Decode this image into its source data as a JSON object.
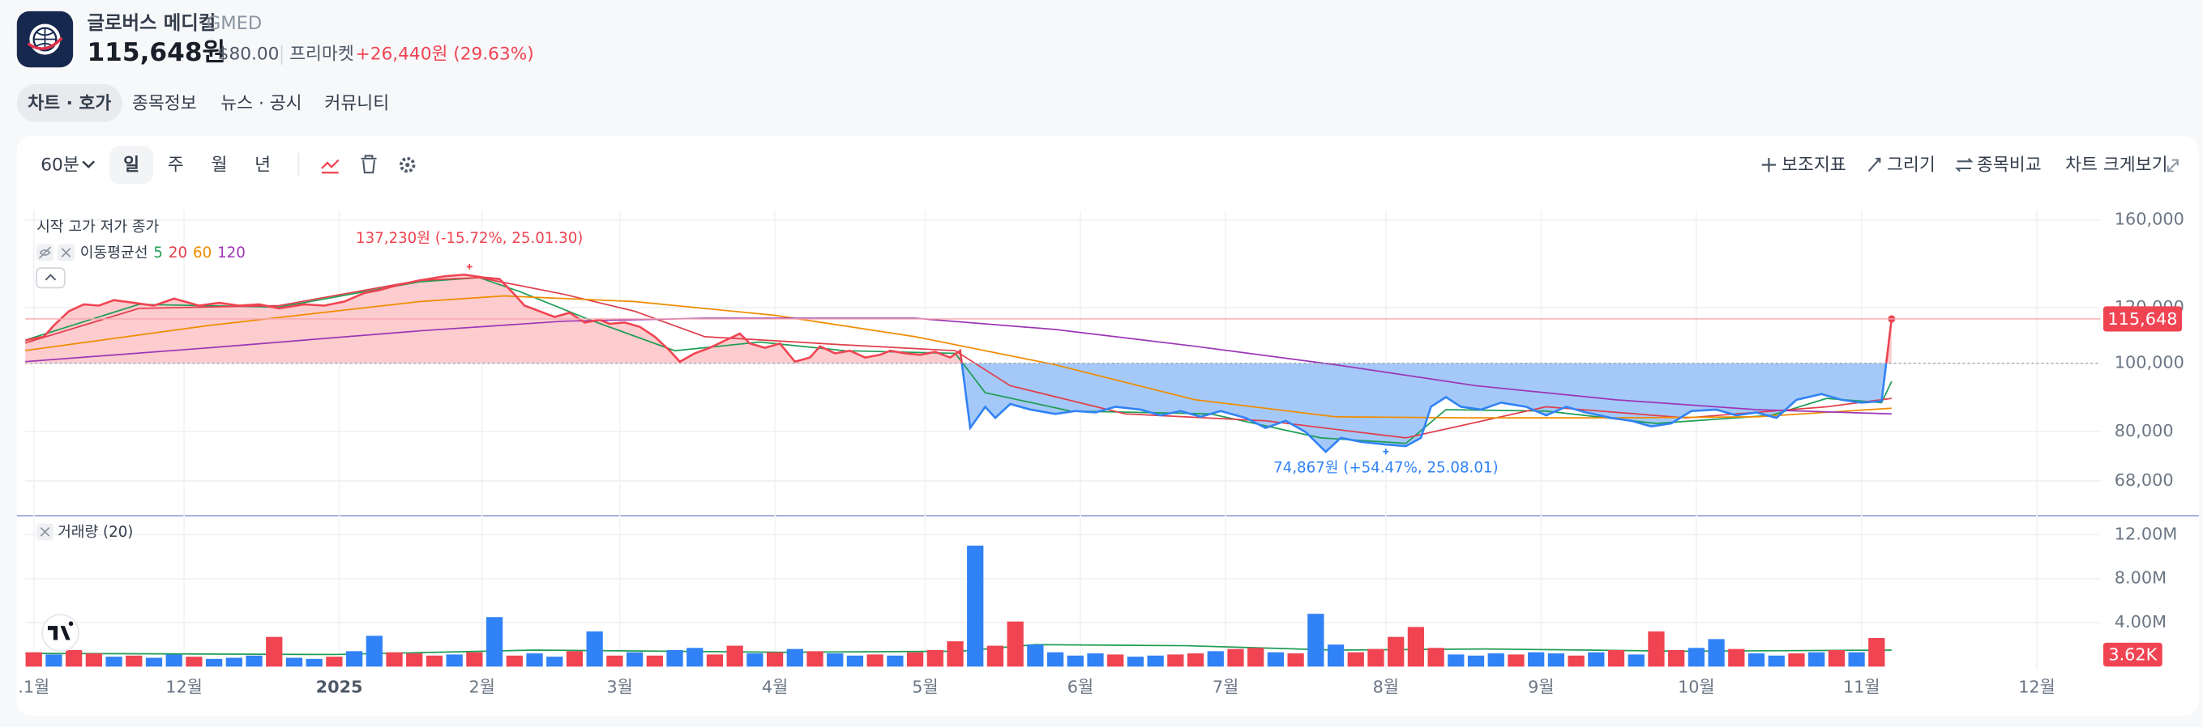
{
  "header": {
    "name": "글로버스 메디컬",
    "ticker": "GMED",
    "price": "115,648원",
    "usd_price": "$80.00",
    "session": "프리마켓",
    "change": "+26,440원 (29.63%)"
  },
  "tabs": [
    "차트 · 호가",
    "종목정보",
    "뉴스 · 공시",
    "커뮤니티"
  ],
  "toolbar": {
    "interval": "60분",
    "periods": [
      "일",
      "주",
      "월",
      "년"
    ],
    "actions": [
      "보조지표",
      "그리기",
      "종목비교",
      "차트 크게보기"
    ]
  },
  "chart_data": [
    {
      "type": "line",
      "log": true,
      "grid": true,
      "ohlc_label": "시작 고가 저가 종가",
      "ma_label": "이동평균선",
      "xlim": [
        -1.7,
        412.7
      ],
      "ylim": [
        60800,
        165000
      ],
      "yticks": [
        {
          "value": 68000,
          "label": "68,000"
        },
        {
          "value": 80000,
          "label": "80,000"
        },
        {
          "value": 100000,
          "label": "100,000"
        },
        {
          "value": 120000,
          "label": "120,000"
        },
        {
          "value": 160000,
          "label": "160,000"
        }
      ],
      "baseline": 100000,
      "last_price": {
        "value": 115648,
        "label": "115,648"
      },
      "annotations": [
        {
          "x": 87,
          "value": 137230,
          "label": "137,230원 (-15.72%, 25.01.30)",
          "position": "above",
          "color": "#f04452"
        },
        {
          "x": 270,
          "value": 74867,
          "label": "74,867원 (+54.47%, 25.08.01)",
          "position": "below",
          "color": "#3182f6"
        }
      ],
      "series": [
        {
          "color_above": "#f04452",
          "color_below": "#3182f6",
          "fill_above": "#fdc3c7",
          "fill_below": "#9fc6f8",
          "x": [
            -2,
            2,
            4,
            7,
            10,
            13,
            16,
            20,
            24,
            28,
            33,
            37,
            41,
            45,
            49,
            54,
            58,
            62,
            66,
            69,
            73,
            77,
            82,
            86,
            90,
            93,
            96,
            98,
            101,
            104,
            107,
            110,
            113,
            115,
            118,
            121,
            124,
            127,
            129,
            132,
            135,
            138,
            141,
            143,
            146,
            149,
            152,
            155,
            157,
            160,
            163,
            166,
            169,
            171,
            174,
            177,
            180,
            183,
            185,
            187,
            190,
            192,
            195,
            199,
            204,
            208,
            212,
            216,
            221,
            225,
            229,
            233,
            237,
            242,
            246,
            250,
            254,
            258,
            261,
            265,
            270,
            274,
            277,
            279,
            282,
            285,
            289,
            293,
            298,
            302,
            306,
            310,
            315,
            319,
            323,
            327,
            331,
            336,
            340,
            344,
            348,
            352,
            357,
            361,
            365,
            369,
            371
          ],
          "values": [
            107700,
            109100,
            113200,
            118600,
            121300,
            120800,
            123000,
            121900,
            120800,
            123600,
            120800,
            121900,
            120800,
            121300,
            119700,
            121300,
            120800,
            122400,
            125900,
            127100,
            129400,
            131200,
            133000,
            133700,
            132400,
            131800,
            125300,
            120800,
            118600,
            116400,
            118000,
            114300,
            115300,
            113800,
            114300,
            112700,
            109100,
            104200,
            100500,
            103300,
            105200,
            107700,
            110200,
            106700,
            105200,
            106700,
            100500,
            101900,
            105700,
            103300,
            104200,
            101900,
            102800,
            104200,
            103300,
            102800,
            103800,
            101900,
            104200,
            80900,
            86700,
            83600,
            87500,
            85900,
            84700,
            85500,
            85100,
            86700,
            85900,
            84300,
            85500,
            83900,
            85500,
            83600,
            80900,
            82800,
            79800,
            74800,
            78300,
            77300,
            76600,
            76200,
            78300,
            86700,
            89500,
            86700,
            85900,
            87900,
            86700,
            84300,
            86700,
            85100,
            83600,
            82800,
            81300,
            82100,
            85500,
            85900,
            84300,
            85100,
            83600,
            88700,
            90400,
            88700,
            87900,
            88300,
            115648
          ]
        },
        {
          "name": "5",
          "color": "#1f9d55",
          "x": [
            -2,
            21,
            49,
            77,
            89,
            97,
            111,
            128,
            145,
            162,
            184,
            190,
            207,
            235,
            257,
            274,
            282,
            302,
            324,
            347,
            358,
            369,
            371
          ],
          "values": [
            107700,
            121300,
            120200,
            130600,
            132400,
            126500,
            115300,
            104200,
            107200,
            104200,
            103300,
            90800,
            85500,
            84700,
            78300,
            76900,
            85900,
            85500,
            82100,
            84300,
            89100,
            87900,
            94200
          ]
        },
        {
          "name": "20",
          "color": "#e03e4a",
          "x": [
            -2,
            21,
            49,
            77,
            89,
            106,
            120,
            134,
            162,
            184,
            195,
            218,
            246,
            274,
            302,
            330,
            358,
            371
          ],
          "values": [
            106700,
            119700,
            120800,
            131200,
            132400,
            125300,
            118600,
            109100,
            106200,
            104200,
            92900,
            84700,
            82800,
            78300,
            86700,
            83600,
            86700,
            89100
          ]
        },
        {
          "name": "60",
          "color": "#f08c00",
          "x": [
            -2,
            35,
            77,
            94,
            120,
            148,
            176,
            204,
            232,
            260,
            288,
            316,
            344,
            371
          ],
          "values": [
            104200,
            113200,
            122400,
            124700,
            122400,
            117000,
            109100,
            99500,
            88700,
            83900,
            83600,
            83600,
            83900,
            86300
          ]
        },
        {
          "name": "120",
          "color": "#9c36b5",
          "x": [
            -2,
            35,
            77,
            106,
            134,
            176,
            204,
            232,
            260,
            288,
            316,
            344,
            371
          ],
          "values": [
            100500,
            105200,
            111200,
            114800,
            115900,
            115900,
            111700,
            105700,
            99500,
            92900,
            88700,
            85900,
            84700
          ]
        }
      ]
    },
    {
      "type": "bar",
      "title": "거래량 (20)",
      "grid": true,
      "xlim": [
        -1.7,
        412.7
      ],
      "ylim": [
        0,
        13400000
      ],
      "yticks": [
        {
          "value": 4000000,
          "label": "4.00M"
        },
        {
          "value": 8000000,
          "label": "8.00M"
        },
        {
          "value": 12000000,
          "label": "12.00M"
        }
      ],
      "xticks": [
        {
          "value": 0,
          "label": ".1월"
        },
        {
          "value": 30,
          "label": "12월"
        },
        {
          "value": 61,
          "label": "2025",
          "bold": true
        },
        {
          "value": 89.5,
          "label": "2월"
        },
        {
          "value": 117,
          "label": "3월"
        },
        {
          "value": 148,
          "label": "4월"
        },
        {
          "value": 178,
          "label": "5월"
        },
        {
          "value": 209,
          "label": "6월"
        },
        {
          "value": 238,
          "label": "7월"
        },
        {
          "value": 270,
          "label": "8월"
        },
        {
          "value": 301,
          "label": "9월"
        },
        {
          "value": 332,
          "label": "10월"
        },
        {
          "value": 365,
          "label": "11월"
        },
        {
          "value": 400,
          "label": "12월"
        }
      ],
      "up_color": "#f04452",
      "down_color": "#3182f6",
      "x": [
        0,
        4,
        8,
        12,
        16,
        20,
        24,
        28,
        32,
        36,
        40,
        44,
        48,
        52,
        56,
        60,
        64,
        68,
        72,
        76,
        80,
        84,
        88,
        92,
        96,
        100,
        104,
        108,
        112,
        116,
        120,
        124,
        128,
        132,
        136,
        140,
        144,
        148,
        152,
        156,
        160,
        164,
        168,
        172,
        176,
        180,
        184,
        188,
        192,
        196,
        200,
        204,
        208,
        212,
        216,
        220,
        224,
        228,
        232,
        236,
        240,
        244,
        248,
        252,
        256,
        260,
        264,
        268,
        272,
        276,
        280,
        284,
        288,
        292,
        296,
        300,
        304,
        308,
        312,
        316,
        320,
        324,
        328,
        332,
        336,
        340,
        344,
        348,
        352,
        356,
        360,
        364,
        368
      ],
      "values": [
        1300000,
        1100000,
        1500000,
        1200000,
        900000,
        1000000,
        800000,
        1100000,
        900000,
        700000,
        800000,
        1000000,
        2700000,
        800000,
        700000,
        900000,
        1400000,
        2800000,
        1300000,
        1200000,
        1000000,
        1100000,
        1300000,
        4500000,
        1000000,
        1200000,
        900000,
        1400000,
        3200000,
        1000000,
        1300000,
        1000000,
        1500000,
        1700000,
        1100000,
        1900000,
        1200000,
        1300000,
        1600000,
        1400000,
        1200000,
        1000000,
        1100000,
        1000000,
        1300000,
        1500000,
        2300000,
        11000000,
        1900000,
        4100000,
        2000000,
        1300000,
        1000000,
        1200000,
        1100000,
        900000,
        1000000,
        1100000,
        1200000,
        1400000,
        1600000,
        1700000,
        1300000,
        1200000,
        4800000,
        2000000,
        1300000,
        1600000,
        2700000,
        3600000,
        1700000,
        1100000,
        1000000,
        1200000,
        1100000,
        1300000,
        1200000,
        1000000,
        1300000,
        1500000,
        1100000,
        3200000,
        1500000,
        1700000,
        2500000,
        1600000,
        1200000,
        1000000,
        1200000,
        1300000,
        1500000,
        1300000,
        2600000
      ],
      "up": [
        true,
        false,
        true,
        true,
        false,
        true,
        false,
        false,
        true,
        false,
        false,
        false,
        true,
        false,
        false,
        true,
        false,
        false,
        true,
        true,
        true,
        false,
        true,
        false,
        true,
        false,
        false,
        true,
        false,
        true,
        false,
        true,
        false,
        false,
        true,
        true,
        false,
        true,
        false,
        true,
        false,
        false,
        true,
        false,
        true,
        true,
        true,
        false,
        true,
        true,
        false,
        false,
        false,
        false,
        true,
        false,
        false,
        true,
        true,
        false,
        true,
        true,
        false,
        true,
        false,
        false,
        true,
        true,
        true,
        true,
        true,
        false,
        false,
        false,
        true,
        false,
        false,
        true,
        false,
        true,
        false,
        true,
        true,
        false,
        false,
        true,
        false,
        false,
        true,
        false,
        true,
        false,
        true
      ],
      "ma": {
        "color": "#1f9d55",
        "x": [
          -2,
          60,
          100,
          150,
          185,
          200,
          230,
          260,
          290,
          330,
          371
        ],
        "values": [
          1200000,
          1100000,
          1500000,
          1300000,
          1400000,
          2000000,
          1900000,
          1500000,
          1600000,
          1400000,
          1500000
        ]
      },
      "last_volume": {
        "value": 3620,
        "label": "3.62K"
      }
    }
  ]
}
